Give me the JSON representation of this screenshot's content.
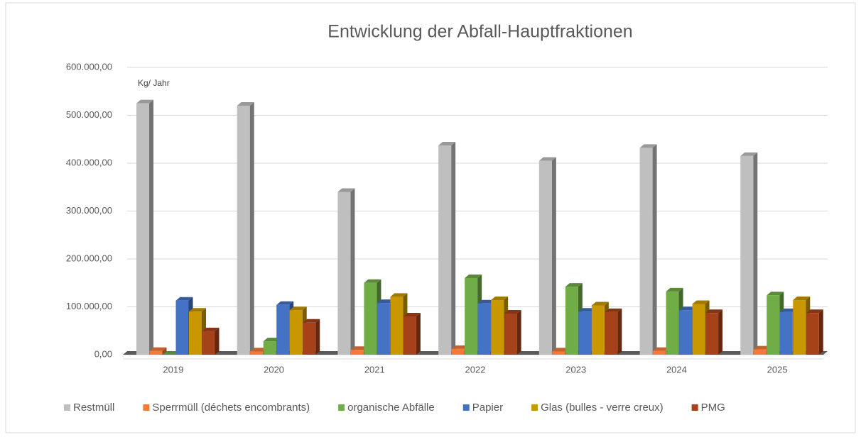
{
  "chart_data": {
    "type": "bar",
    "title": "Entwicklung der Abfall-Hauptfraktionen",
    "annotation": "Kg/ Jahr",
    "categories": [
      "2019",
      "2020",
      "2021",
      "2022",
      "2023",
      "2024",
      "2025"
    ],
    "series": [
      {
        "name": "Restmüll",
        "color": "#bfbfbf",
        "values": [
          525000,
          520000,
          340000,
          437000,
          405000,
          432000,
          415000
        ]
      },
      {
        "name": "Sperrmüll (déchets encombrants)",
        "color": "#f47a3a",
        "values": [
          8000,
          7000,
          10000,
          12000,
          7000,
          8000,
          11000
        ]
      },
      {
        "name": "organische Abfälle",
        "color": "#70ad47",
        "values": [
          0,
          28000,
          150000,
          160000,
          142000,
          132000,
          124000
        ]
      },
      {
        "name": "Papier",
        "color": "#4472c4",
        "values": [
          113000,
          104000,
          108000,
          107000,
          90000,
          93000,
          89000
        ]
      },
      {
        "name": "Glas (bulles - verre creux)",
        "color": "#c99700",
        "values": [
          90000,
          93000,
          121000,
          114000,
          103000,
          106000,
          114000
        ]
      },
      {
        "name": "PMG",
        "color": "#a6421a",
        "values": [
          49000,
          67000,
          80000,
          86000,
          89000,
          87000,
          87000
        ]
      }
    ],
    "ylim": [
      0,
      600000
    ],
    "yticks": [
      {
        "value": 0,
        "label": "0,00"
      },
      {
        "value": 100000,
        "label": "100.000,00"
      },
      {
        "value": 200000,
        "label": "200.000,00"
      },
      {
        "value": 300000,
        "label": "300.000,00"
      },
      {
        "value": 400000,
        "label": "400.000,00"
      },
      {
        "value": 500000,
        "label": "500.000,00"
      },
      {
        "value": 600000,
        "label": "600.000,00"
      }
    ],
    "grid": true
  }
}
